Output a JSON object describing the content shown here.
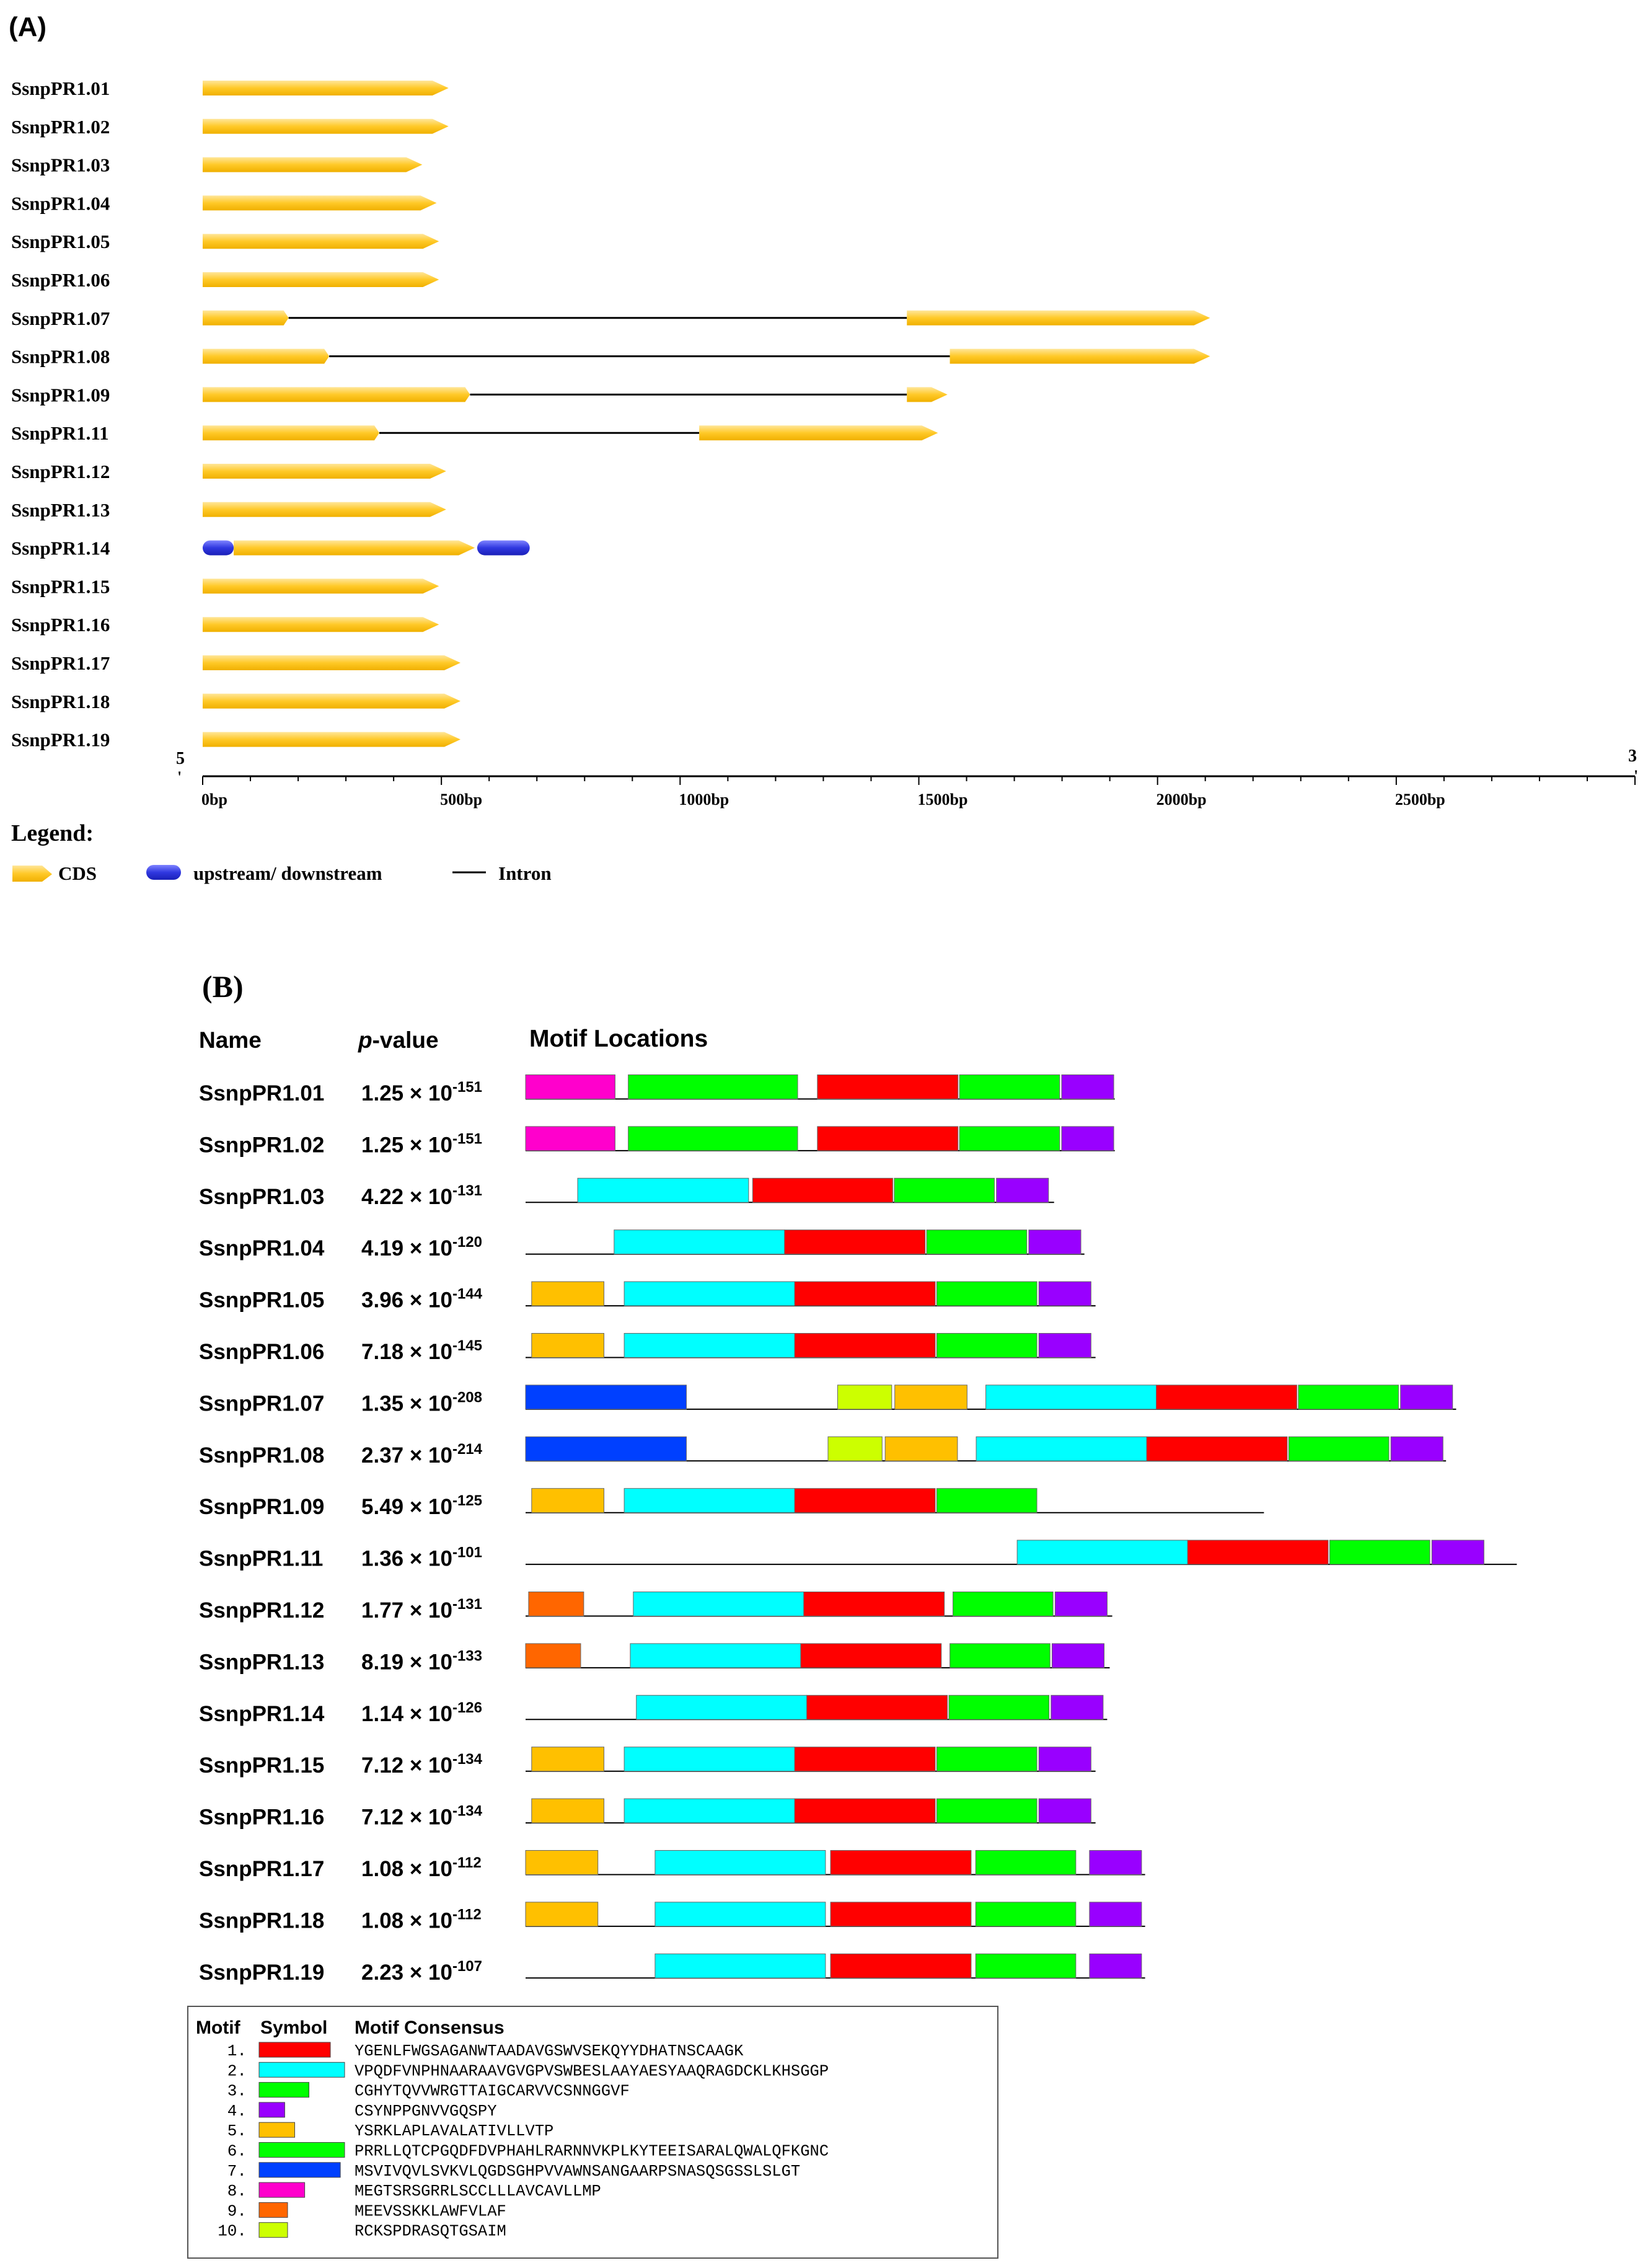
{
  "panel_a": {
    "label": "(A)",
    "gene_names": [
      "SsnpPR1.01",
      "SsnpPR1.02",
      "SsnpPR1.03",
      "SsnpPR1.04",
      "SsnpPR1.05",
      "SsnpPR1.06",
      "SsnpPR1.07",
      "SsnpPR1.08",
      "SsnpPR1.09",
      "SsnpPR1.11",
      "SsnpPR1.12",
      "SsnpPR1.13",
      "SsnpPR1.14",
      "SsnpPR1.15",
      "SsnpPR1.16",
      "SsnpPR1.17",
      "SsnpPR1.18",
      "SsnpPR1.19"
    ],
    "structures": [
      {
        "cds": [
          [
            0,
            515
          ]
        ],
        "utr": []
      },
      {
        "cds": [
          [
            0,
            515
          ]
        ],
        "utr": []
      },
      {
        "cds": [
          [
            0,
            460
          ]
        ],
        "utr": []
      },
      {
        "cds": [
          [
            0,
            490
          ]
        ],
        "utr": []
      },
      {
        "cds": [
          [
            0,
            495
          ]
        ],
        "utr": []
      },
      {
        "cds": [
          [
            0,
            495
          ]
        ],
        "utr": []
      },
      {
        "cds": [
          [
            0,
            180
          ],
          [
            1475,
            2110
          ]
        ],
        "utr": []
      },
      {
        "cds": [
          [
            0,
            265
          ],
          [
            1565,
            2110
          ]
        ],
        "utr": []
      },
      {
        "cds": [
          [
            0,
            560
          ],
          [
            1475,
            1560
          ]
        ],
        "utr": []
      },
      {
        "cds": [
          [
            0,
            370
          ],
          [
            1040,
            1540
          ]
        ],
        "utr": []
      },
      {
        "cds": [
          [
            0,
            510
          ]
        ],
        "utr": []
      },
      {
        "cds": [
          [
            0,
            510
          ]
        ],
        "utr": []
      },
      {
        "cds": [
          [
            65,
            570
          ]
        ],
        "utr": [
          [
            0,
            65
          ],
          [
            575,
            685
          ]
        ]
      },
      {
        "cds": [
          [
            0,
            495
          ]
        ],
        "utr": []
      },
      {
        "cds": [
          [
            0,
            495
          ]
        ],
        "utr": []
      },
      {
        "cds": [
          [
            0,
            540
          ]
        ],
        "utr": []
      },
      {
        "cds": [
          [
            0,
            540
          ]
        ],
        "utr": []
      },
      {
        "cds": [
          [
            0,
            540
          ]
        ],
        "utr": []
      }
    ],
    "axis": {
      "min": 0,
      "max": 3000,
      "tick_values": [
        0,
        500,
        1000,
        1500,
        2000,
        2500
      ],
      "tick_labels": [
        "0bp",
        "500bp",
        "1000bp",
        "1500bp",
        "2000bp",
        "2500bp"
      ],
      "end_left": "5",
      "end_right": "3",
      "end_mark": "'"
    },
    "legend": {
      "title": "Legend:",
      "cds": "CDS",
      "utr": "upstream/ downstream",
      "intron": "Intron"
    }
  },
  "panel_b": {
    "label": "(B)",
    "headers": {
      "name": "Name",
      "p_italic": "p",
      "p_rest": "-value",
      "locations": "Motif Locations"
    },
    "times": "× 10",
    "rows": [
      {
        "name": "SsnpPR1.01",
        "mant": "1.25",
        "exp": "-151",
        "len": 1165,
        "motifs": [
          {
            "id": 8,
            "s": 0,
            "e": 177
          },
          {
            "id": 6,
            "s": 203,
            "e": 538
          },
          {
            "id": 1,
            "s": 577,
            "e": 855
          },
          {
            "id": 3,
            "s": 858,
            "e": 1056
          },
          {
            "id": 4,
            "s": 1060,
            "e": 1163
          }
        ]
      },
      {
        "name": "SsnpPR1.02",
        "mant": "1.25",
        "exp": "-151",
        "len": 1165,
        "motifs": [
          {
            "id": 8,
            "s": 0,
            "e": 177
          },
          {
            "id": 6,
            "s": 203,
            "e": 538
          },
          {
            "id": 1,
            "s": 577,
            "e": 855
          },
          {
            "id": 3,
            "s": 858,
            "e": 1056
          },
          {
            "id": 4,
            "s": 1060,
            "e": 1163
          }
        ]
      },
      {
        "name": "SsnpPR1.03",
        "mant": "4.22",
        "exp": "-131",
        "len": 1045,
        "motifs": [
          {
            "id": 2,
            "s": 103,
            "e": 441
          },
          {
            "id": 1,
            "s": 449,
            "e": 726
          },
          {
            "id": 3,
            "s": 729,
            "e": 927
          },
          {
            "id": 4,
            "s": 931,
            "e": 1034
          }
        ]
      },
      {
        "name": "SsnpPR1.04",
        "mant": "4.19",
        "exp": "-120",
        "len": 1105,
        "motifs": [
          {
            "id": 2,
            "s": 175,
            "e": 512
          },
          {
            "id": 1,
            "s": 512,
            "e": 790
          },
          {
            "id": 3,
            "s": 793,
            "e": 991
          },
          {
            "id": 4,
            "s": 995,
            "e": 1098
          }
        ]
      },
      {
        "name": "SsnpPR1.05",
        "mant": "3.96",
        "exp": "-144",
        "len": 1127,
        "motifs": [
          {
            "id": 5,
            "s": 12,
            "e": 155
          },
          {
            "id": 2,
            "s": 195,
            "e": 532
          },
          {
            "id": 1,
            "s": 532,
            "e": 810
          },
          {
            "id": 3,
            "s": 813,
            "e": 1011
          },
          {
            "id": 4,
            "s": 1015,
            "e": 1118
          }
        ]
      },
      {
        "name": "SsnpPR1.06",
        "mant": "7.18",
        "exp": "-145",
        "len": 1127,
        "motifs": [
          {
            "id": 5,
            "s": 12,
            "e": 155
          },
          {
            "id": 2,
            "s": 195,
            "e": 532
          },
          {
            "id": 1,
            "s": 532,
            "e": 810
          },
          {
            "id": 3,
            "s": 813,
            "e": 1011
          },
          {
            "id": 4,
            "s": 1015,
            "e": 1118
          }
        ]
      },
      {
        "name": "SsnpPR1.07",
        "mant": "1.35",
        "exp": "-208",
        "len": 1840,
        "motifs": [
          {
            "id": 7,
            "s": 0,
            "e": 318
          },
          {
            "id": 10,
            "s": 617,
            "e": 724
          },
          {
            "id": 5,
            "s": 730,
            "e": 873
          },
          {
            "id": 2,
            "s": 910,
            "e": 1247
          },
          {
            "id": 1,
            "s": 1247,
            "e": 1525
          },
          {
            "id": 3,
            "s": 1528,
            "e": 1726
          },
          {
            "id": 4,
            "s": 1730,
            "e": 1833
          }
        ]
      },
      {
        "name": "SsnpPR1.08",
        "mant": "2.37",
        "exp": "-214",
        "len": 1820,
        "motifs": [
          {
            "id": 7,
            "s": 0,
            "e": 318
          },
          {
            "id": 10,
            "s": 598,
            "e": 705
          },
          {
            "id": 5,
            "s": 711,
            "e": 854
          },
          {
            "id": 2,
            "s": 891,
            "e": 1228
          },
          {
            "id": 1,
            "s": 1228,
            "e": 1506
          },
          {
            "id": 3,
            "s": 1509,
            "e": 1707
          },
          {
            "id": 4,
            "s": 1711,
            "e": 1814
          }
        ]
      },
      {
        "name": "SsnpPR1.09",
        "mant": "5.49",
        "exp": "-125",
        "len": 1460,
        "motifs": [
          {
            "id": 5,
            "s": 12,
            "e": 155
          },
          {
            "id": 2,
            "s": 195,
            "e": 532
          },
          {
            "id": 1,
            "s": 532,
            "e": 810
          },
          {
            "id": 3,
            "s": 813,
            "e": 1011
          }
        ]
      },
      {
        "name": "SsnpPR1.11",
        "mant": "1.36",
        "exp": "-101",
        "len": 1960,
        "motifs": [
          {
            "id": 2,
            "s": 972,
            "e": 1309
          },
          {
            "id": 1,
            "s": 1309,
            "e": 1587
          },
          {
            "id": 3,
            "s": 1590,
            "e": 1788
          },
          {
            "id": 4,
            "s": 1792,
            "e": 1895
          }
        ]
      },
      {
        "name": "SsnpPR1.12",
        "mant": "1.77",
        "exp": "-131",
        "len": 1160,
        "motifs": [
          {
            "id": 9,
            "s": 6,
            "e": 115
          },
          {
            "id": 2,
            "s": 213,
            "e": 550
          },
          {
            "id": 1,
            "s": 550,
            "e": 828
          },
          {
            "id": 3,
            "s": 845,
            "e": 1043
          },
          {
            "id": 4,
            "s": 1047,
            "e": 1150
          }
        ]
      },
      {
        "name": "SsnpPR1.13",
        "mant": "8.19",
        "exp": "-133",
        "len": 1155,
        "motifs": [
          {
            "id": 9,
            "s": 0,
            "e": 109
          },
          {
            "id": 2,
            "s": 207,
            "e": 544
          },
          {
            "id": 1,
            "s": 544,
            "e": 822
          },
          {
            "id": 3,
            "s": 839,
            "e": 1037
          },
          {
            "id": 4,
            "s": 1041,
            "e": 1144
          }
        ]
      },
      {
        "name": "SsnpPR1.14",
        "mant": "1.14",
        "exp": "-126",
        "len": 1150,
        "motifs": [
          {
            "id": 2,
            "s": 219,
            "e": 556
          },
          {
            "id": 1,
            "s": 556,
            "e": 834
          },
          {
            "id": 3,
            "s": 837,
            "e": 1035
          },
          {
            "id": 4,
            "s": 1039,
            "e": 1142
          }
        ]
      },
      {
        "name": "SsnpPR1.15",
        "mant": "7.12",
        "exp": "-134",
        "len": 1127,
        "motifs": [
          {
            "id": 5,
            "s": 12,
            "e": 155
          },
          {
            "id": 2,
            "s": 195,
            "e": 532
          },
          {
            "id": 1,
            "s": 532,
            "e": 810
          },
          {
            "id": 3,
            "s": 813,
            "e": 1011
          },
          {
            "id": 4,
            "s": 1015,
            "e": 1118
          }
        ]
      },
      {
        "name": "SsnpPR1.16",
        "mant": "7.12",
        "exp": "-134",
        "len": 1127,
        "motifs": [
          {
            "id": 5,
            "s": 12,
            "e": 155
          },
          {
            "id": 2,
            "s": 195,
            "e": 532
          },
          {
            "id": 1,
            "s": 532,
            "e": 810
          },
          {
            "id": 3,
            "s": 813,
            "e": 1011
          },
          {
            "id": 4,
            "s": 1015,
            "e": 1118
          }
        ]
      },
      {
        "name": "SsnpPR1.17",
        "mant": "1.08",
        "exp": "-112",
        "len": 1225,
        "motifs": [
          {
            "id": 5,
            "s": 0,
            "e": 143
          },
          {
            "id": 2,
            "s": 256,
            "e": 593
          },
          {
            "id": 1,
            "s": 603,
            "e": 881
          },
          {
            "id": 3,
            "s": 890,
            "e": 1088
          },
          {
            "id": 4,
            "s": 1115,
            "e": 1218
          }
        ]
      },
      {
        "name": "SsnpPR1.18",
        "mant": "1.08",
        "exp": "-112",
        "len": 1225,
        "motifs": [
          {
            "id": 5,
            "s": 0,
            "e": 143
          },
          {
            "id": 2,
            "s": 256,
            "e": 593
          },
          {
            "id": 1,
            "s": 603,
            "e": 881
          },
          {
            "id": 3,
            "s": 890,
            "e": 1088
          },
          {
            "id": 4,
            "s": 1115,
            "e": 1218
          }
        ]
      },
      {
        "name": "SsnpPR1.19",
        "mant": "2.23",
        "exp": "-107",
        "len": 1225,
        "motifs": [
          {
            "id": 2,
            "s": 256,
            "e": 593
          },
          {
            "id": 1,
            "s": 603,
            "e": 881
          },
          {
            "id": 3,
            "s": 890,
            "e": 1088
          },
          {
            "id": 4,
            "s": 1115,
            "e": 1218
          }
        ]
      }
    ],
    "legend": {
      "headers": {
        "motif": "Motif",
        "symbol": "Symbol",
        "consensus": "Motif Consensus"
      },
      "motifs": [
        {
          "num": "1.",
          "color": "#ff0000",
          "len": 50,
          "consensus": "YGENLFWGSAGANWTAADAVGSWVSEKQYYDHATNSCAAGK"
        },
        {
          "num": "2.",
          "color": "#00ffff",
          "len": 60,
          "consensus": "VPQDFVNPHNAARAAVGVGPVSWBESLAAYAESYAAQRAGDCKLKHSGGP"
        },
        {
          "num": "3.",
          "color": "#00ff00",
          "len": 35,
          "consensus": "CGHYTQVVWRGTTAIGCARVVCSNNGGVF"
        },
        {
          "num": "4.",
          "color": "#9900ff",
          "len": 18,
          "consensus": "CSYNPPGNVVGQSPY"
        },
        {
          "num": "5.",
          "color": "#ffc000",
          "len": 25,
          "consensus": "YSRKLAPLAVALATIVLLVTP"
        },
        {
          "num": "6.",
          "color": "#00ff00",
          "len": 60,
          "consensus": "PRRLLQTCPGQDFDVPHAHLRARNNVKPLKYTEEISARALQWALQFKGNC"
        },
        {
          "num": "7.",
          "color": "#0040ff",
          "len": 57,
          "consensus": "MSVIVQVLSVKVLQGDSGHPVVAWNSANGAARPSNASQSGSSLSLGT"
        },
        {
          "num": "8.",
          "color": "#ff00cc",
          "len": 32,
          "consensus": "MEGTSRSGRRLSCCLLLAVCAVLLMP"
        },
        {
          "num": "9.",
          "color": "#ff6600",
          "len": 20,
          "consensus": "MEEVSSKKLAWFVLAF"
        },
        {
          "num": "10.",
          "color": "#ccff00",
          "len": 20,
          "consensus": "RCKSPDRASQTGSAIM"
        }
      ]
    }
  }
}
